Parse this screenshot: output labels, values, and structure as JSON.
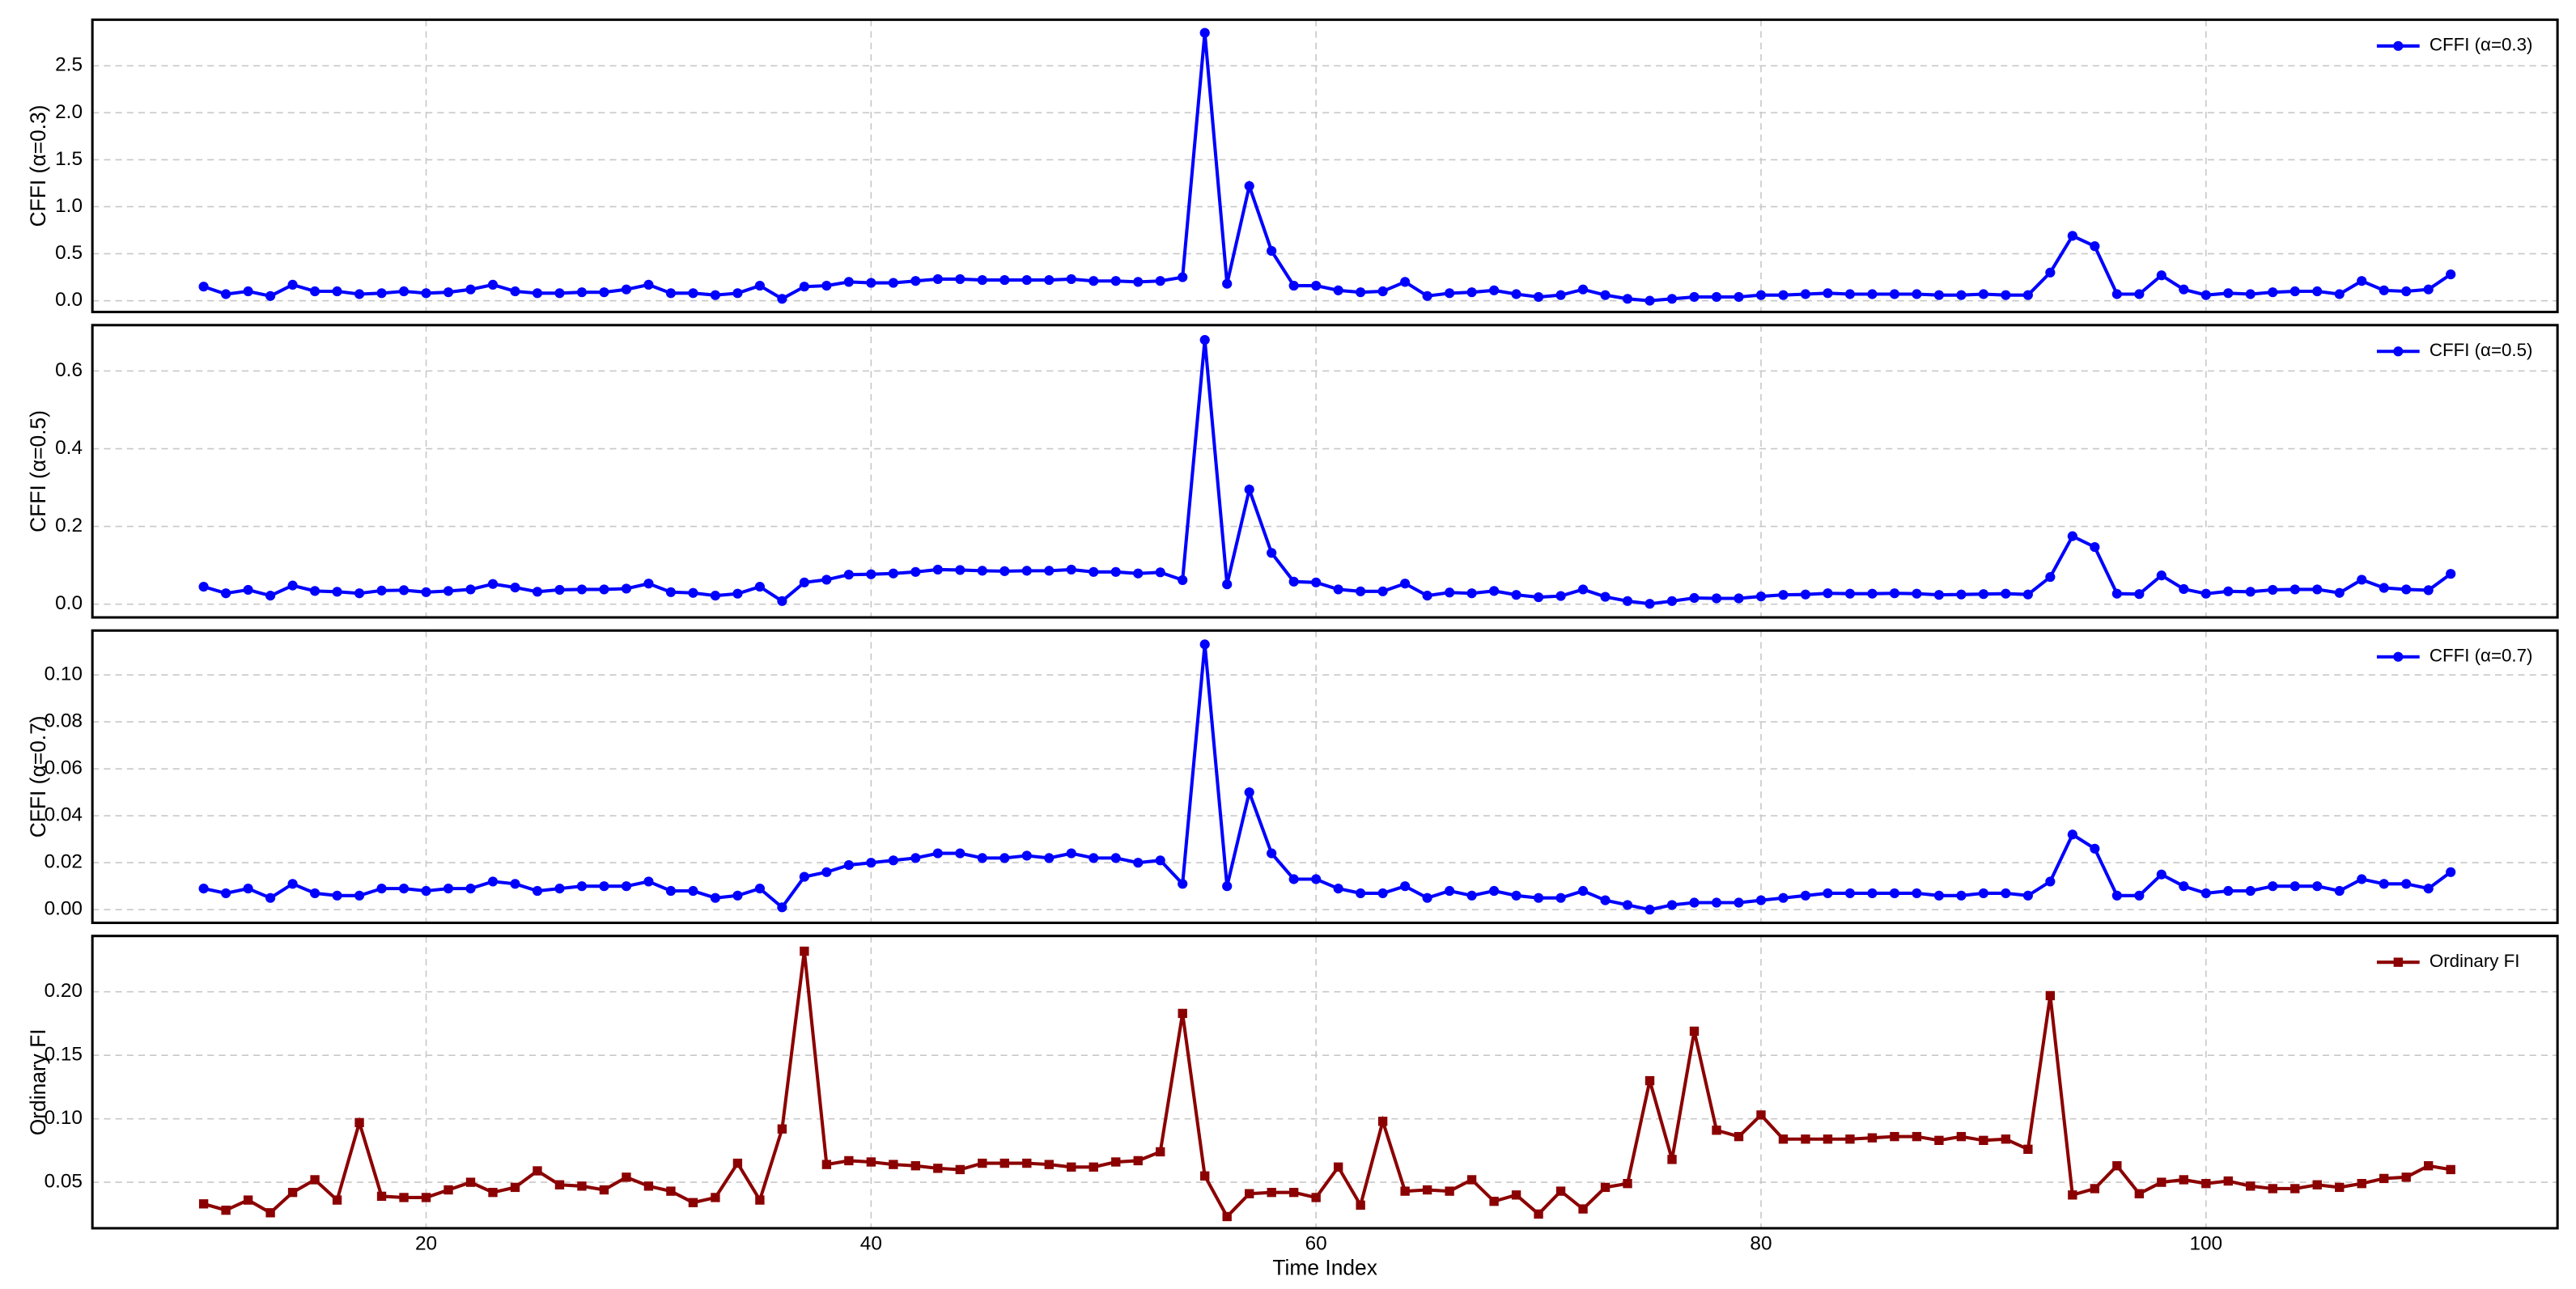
{
  "chart_data": [
    {
      "type": "line",
      "ylabel": "CFFI (α=0.3)",
      "legend": "upper right",
      "grid": true,
      "marker": "circle",
      "x": [
        10,
        11,
        12,
        13,
        14,
        15,
        16,
        17,
        18,
        19,
        20,
        21,
        22,
        23,
        24,
        25,
        26,
        27,
        28,
        29,
        30,
        31,
        32,
        33,
        34,
        35,
        36,
        37,
        38,
        39,
        40,
        41,
        42,
        43,
        44,
        45,
        46,
        47,
        48,
        49,
        50,
        51,
        52,
        53,
        54,
        55,
        56,
        57,
        58,
        59,
        60,
        61,
        62,
        63,
        64,
        65,
        66,
        67,
        68,
        69,
        70,
        71,
        72,
        73,
        74,
        75,
        76,
        77,
        78,
        79,
        80,
        81,
        82,
        83,
        84,
        85,
        86,
        87,
        88,
        89,
        90,
        91,
        92,
        93,
        94,
        95,
        96,
        97,
        98,
        99,
        100,
        101,
        102,
        103,
        104,
        105,
        106,
        107,
        108,
        109,
        110,
        111
      ],
      "xlim": [
        5,
        115.8
      ],
      "xticks": [
        20,
        40,
        60,
        80,
        100
      ],
      "ylim": [
        -0.12,
        2.99
      ],
      "yticks": [
        {
          "value": 0,
          "label": "0.0"
        },
        0.5,
        {
          "value": 1,
          "label": "1.0"
        },
        1.5,
        {
          "value": 2,
          "label": "2.0"
        },
        2.5
      ],
      "series": [
        {
          "name": "CFFI (α=0.3)",
          "color": "#0000ff",
          "values": [
            0.15,
            0.07,
            0.1,
            0.05,
            0.17,
            0.1,
            0.1,
            0.07,
            0.08,
            0.1,
            0.08,
            0.09,
            0.12,
            0.17,
            0.1,
            0.08,
            0.08,
            0.09,
            0.09,
            0.12,
            0.17,
            0.08,
            0.08,
            0.06,
            0.08,
            0.16,
            0.02,
            0.15,
            0.16,
            0.2,
            0.19,
            0.19,
            0.21,
            0.23,
            0.23,
            0.22,
            0.22,
            0.22,
            0.22,
            0.23,
            0.21,
            0.21,
            0.2,
            0.21,
            0.25,
            2.85,
            0.18,
            1.22,
            0.53,
            0.16,
            0.16,
            0.11,
            0.09,
            0.1,
            0.2,
            0.05,
            0.08,
            0.09,
            0.11,
            0.07,
            0.04,
            0.06,
            0.12,
            0.06,
            0.02,
            0,
            0.02,
            0.04,
            0.04,
            0.04,
            0.06,
            0.06,
            0.07,
            0.08,
            0.07,
            0.07,
            0.07,
            0.07,
            0.06,
            0.06,
            0.07,
            0.06,
            0.06,
            0.3,
            0.69,
            0.58,
            0.07,
            0.07,
            0.27,
            0.12,
            0.06,
            0.08,
            0.07,
            0.09,
            0.1,
            0.1,
            0.07,
            0.21,
            0.11,
            0.1,
            0.12,
            0.28
          ]
        }
      ]
    },
    {
      "type": "line",
      "ylabel": "CFFI (α=0.5)",
      "legend": "upper right",
      "grid": true,
      "marker": "circle",
      "x": [
        10,
        11,
        12,
        13,
        14,
        15,
        16,
        17,
        18,
        19,
        20,
        21,
        22,
        23,
        24,
        25,
        26,
        27,
        28,
        29,
        30,
        31,
        32,
        33,
        34,
        35,
        36,
        37,
        38,
        39,
        40,
        41,
        42,
        43,
        44,
        45,
        46,
        47,
        48,
        49,
        50,
        51,
        52,
        53,
        54,
        55,
        56,
        57,
        58,
        59,
        60,
        61,
        62,
        63,
        64,
        65,
        66,
        67,
        68,
        69,
        70,
        71,
        72,
        73,
        74,
        75,
        76,
        77,
        78,
        79,
        80,
        81,
        82,
        83,
        84,
        85,
        86,
        87,
        88,
        89,
        90,
        91,
        92,
        93,
        94,
        95,
        96,
        97,
        98,
        99,
        100,
        101,
        102,
        103,
        104,
        105,
        106,
        107,
        108,
        109,
        110,
        111
      ],
      "xlim": [
        5,
        115.8
      ],
      "xticks": [
        20,
        40,
        60,
        80,
        100
      ],
      "ylim": [
        -0.034,
        0.718
      ],
      "yticks": [
        {
          "value": 0,
          "label": "0.0"
        },
        0.2,
        0.4,
        0.6
      ],
      "series": [
        {
          "name": "CFFI (α=0.5)",
          "color": "#0000ff",
          "values": [
            0.045,
            0.028,
            0.037,
            0.022,
            0.048,
            0.034,
            0.032,
            0.028,
            0.035,
            0.036,
            0.031,
            0.034,
            0.038,
            0.052,
            0.043,
            0.032,
            0.037,
            0.038,
            0.038,
            0.04,
            0.053,
            0.031,
            0.029,
            0.022,
            0.027,
            0.045,
            0.008,
            0.056,
            0.063,
            0.076,
            0.077,
            0.079,
            0.083,
            0.089,
            0.088,
            0.086,
            0.085,
            0.086,
            0.086,
            0.089,
            0.083,
            0.083,
            0.079,
            0.082,
            0.062,
            0.68,
            0.051,
            0.295,
            0.132,
            0.058,
            0.056,
            0.038,
            0.033,
            0.033,
            0.053,
            0.022,
            0.03,
            0.028,
            0.034,
            0.024,
            0.018,
            0.021,
            0.038,
            0.019,
            0.008,
            0.001,
            0.008,
            0.016,
            0.015,
            0.015,
            0.02,
            0.024,
            0.025,
            0.028,
            0.027,
            0.027,
            0.028,
            0.027,
            0.024,
            0.025,
            0.026,
            0.027,
            0.025,
            0.07,
            0.175,
            0.147,
            0.027,
            0.026,
            0.074,
            0.039,
            0.027,
            0.033,
            0.032,
            0.037,
            0.038,
            0.038,
            0.029,
            0.063,
            0.042,
            0.038,
            0.036,
            0.078
          ]
        }
      ]
    },
    {
      "type": "line",
      "ylabel": "CFFI (α=0.7)",
      "legend": "upper right",
      "grid": true,
      "marker": "circle",
      "x": [
        10,
        11,
        12,
        13,
        14,
        15,
        16,
        17,
        18,
        19,
        20,
        21,
        22,
        23,
        24,
        25,
        26,
        27,
        28,
        29,
        30,
        31,
        32,
        33,
        34,
        35,
        36,
        37,
        38,
        39,
        40,
        41,
        42,
        43,
        44,
        45,
        46,
        47,
        48,
        49,
        50,
        51,
        52,
        53,
        54,
        55,
        56,
        57,
        58,
        59,
        60,
        61,
        62,
        63,
        64,
        65,
        66,
        67,
        68,
        69,
        70,
        71,
        72,
        73,
        74,
        75,
        76,
        77,
        78,
        79,
        80,
        81,
        82,
        83,
        84,
        85,
        86,
        87,
        88,
        89,
        90,
        91,
        92,
        93,
        94,
        95,
        96,
        97,
        98,
        99,
        100,
        101,
        102,
        103,
        104,
        105,
        106,
        107,
        108,
        109,
        110,
        111
      ],
      "xlim": [
        5,
        115.8
      ],
      "xticks": [
        20,
        40,
        60,
        80,
        100
      ],
      "ylim": [
        -0.0056,
        0.1189
      ],
      "yticks": [
        {
          "value": 0,
          "label": "0.00"
        },
        0.02,
        0.04,
        0.06,
        0.08,
        {
          "value": 0.1,
          "label": "0.10"
        }
      ],
      "series": [
        {
          "name": "CFFI (α=0.7)",
          "color": "#0000ff",
          "values": [
            0.009,
            0.007,
            0.009,
            0.005,
            0.011,
            0.007,
            0.006,
            0.006,
            0.009,
            0.009,
            0.008,
            0.009,
            0.009,
            0.012,
            0.011,
            0.008,
            0.009,
            0.01,
            0.01,
            0.01,
            0.012,
            0.008,
            0.008,
            0.005,
            0.006,
            0.009,
            0.001,
            0.014,
            0.016,
            0.019,
            0.02,
            0.021,
            0.022,
            0.024,
            0.024,
            0.022,
            0.022,
            0.023,
            0.022,
            0.024,
            0.022,
            0.022,
            0.02,
            0.021,
            0.011,
            0.113,
            0.01,
            0.05,
            0.024,
            0.013,
            0.013,
            0.009,
            0.007,
            0.007,
            0.01,
            0.005,
            0.008,
            0.006,
            0.008,
            0.006,
            0.005,
            0.005,
            0.008,
            0.004,
            0.002,
            0,
            0.002,
            0.003,
            0.003,
            0.003,
            0.004,
            0.005,
            0.006,
            0.007,
            0.007,
            0.007,
            0.007,
            0.007,
            0.006,
            0.006,
            0.007,
            0.007,
            0.006,
            0.012,
            0.032,
            0.026,
            0.006,
            0.006,
            0.015,
            0.01,
            0.007,
            0.008,
            0.008,
            0.01,
            0.01,
            0.01,
            0.008,
            0.013,
            0.011,
            0.011,
            0.009,
            0.016
          ]
        }
      ]
    },
    {
      "type": "line",
      "ylabel": "Ordinary FI",
      "xlabel": "Time Index",
      "legend": "upper right",
      "grid": true,
      "marker": "square",
      "x": [
        10,
        11,
        12,
        13,
        14,
        15,
        16,
        17,
        18,
        19,
        20,
        21,
        22,
        23,
        24,
        25,
        26,
        27,
        28,
        29,
        30,
        31,
        32,
        33,
        34,
        35,
        36,
        37,
        38,
        39,
        40,
        41,
        42,
        43,
        44,
        45,
        46,
        47,
        48,
        49,
        50,
        51,
        52,
        53,
        54,
        55,
        56,
        57,
        58,
        59,
        60,
        61,
        62,
        63,
        64,
        65,
        66,
        67,
        68,
        69,
        70,
        71,
        72,
        73,
        74,
        75,
        76,
        77,
        78,
        79,
        80,
        81,
        82,
        83,
        84,
        85,
        86,
        87,
        88,
        89,
        90,
        91,
        92,
        93,
        94,
        95,
        96,
        97,
        98,
        99,
        100,
        101,
        102,
        103,
        104,
        105,
        106,
        107,
        108,
        109,
        110,
        111
      ],
      "xlim": [
        5,
        115.8
      ],
      "xticks": [
        20,
        40,
        60,
        80,
        100
      ],
      "ylim": [
        0.0138,
        0.244
      ],
      "yticks": [
        0.05,
        {
          "value": 0.1,
          "label": "0.10"
        },
        0.15,
        {
          "value": 0.2,
          "label": "0.20"
        }
      ],
      "series": [
        {
          "name": "Ordinary FI",
          "color": "#8b0000",
          "values": [
            0.033,
            0.028,
            0.036,
            0.026,
            0.042,
            0.052,
            0.036,
            0.097,
            0.039,
            0.038,
            0.038,
            0.044,
            0.05,
            0.042,
            0.046,
            0.059,
            0.048,
            0.047,
            0.044,
            0.054,
            0.047,
            0.043,
            0.034,
            0.038,
            0.065,
            0.036,
            0.092,
            0.232,
            0.064,
            0.067,
            0.066,
            0.064,
            0.063,
            0.061,
            0.06,
            0.065,
            0.065,
            0.065,
            0.064,
            0.062,
            0.062,
            0.066,
            0.067,
            0.074,
            0.183,
            0.055,
            0.023,
            0.041,
            0.042,
            0.042,
            0.038,
            0.062,
            0.032,
            0.098,
            0.043,
            0.044,
            0.043,
            0.052,
            0.035,
            0.04,
            0.025,
            0.043,
            0.029,
            0.046,
            0.049,
            0.13,
            0.068,
            0.169,
            0.091,
            0.086,
            0.103,
            0.084,
            0.084,
            0.084,
            0.084,
            0.085,
            0.086,
            0.086,
            0.083,
            0.086,
            0.083,
            0.084,
            0.076,
            0.197,
            0.04,
            0.045,
            0.063,
            0.041,
            0.05,
            0.052,
            0.049,
            0.051,
            0.047,
            0.045,
            0.045,
            0.048,
            0.046,
            0.049,
            0.053,
            0.054,
            0.063,
            0.06
          ]
        }
      ]
    }
  ]
}
